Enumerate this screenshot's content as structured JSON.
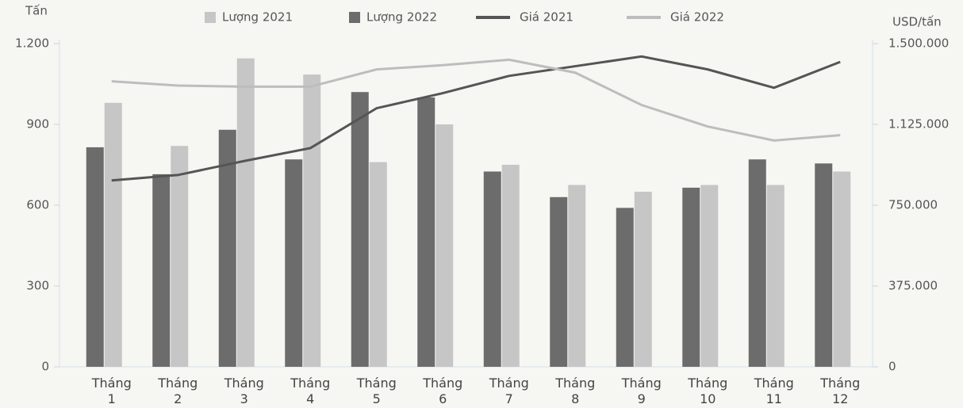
{
  "chart_data": {
    "type": "combo",
    "y_label": "Tấn",
    "y2_label": "USD/tấn",
    "categories": [
      "Tháng 1",
      "Tháng 2",
      "Tháng 3",
      "Tháng 4",
      "Tháng 5",
      "Tháng 6",
      "Tháng 7",
      "Tháng 8",
      "Tháng 9",
      "Tháng 10",
      "Tháng 11",
      "Tháng 12"
    ],
    "series": [
      {
        "name": "Lượng 2021",
        "type": "bar",
        "color": "#c6c6c6",
        "values": [
          980,
          820,
          1145,
          1085,
          760,
          900,
          750,
          675,
          650,
          675,
          675,
          725
        ]
      },
      {
        "name": "Lượng 2022",
        "type": "bar",
        "color": "#6c6c6c",
        "values": [
          815,
          715,
          880,
          770,
          1020,
          1000,
          725,
          630,
          590,
          665,
          770,
          755
        ]
      },
      {
        "name": "Giá 2021",
        "type": "line",
        "axis": "y2",
        "color": "#555555",
        "values": [
          865000,
          890000,
          955000,
          1015000,
          1200000,
          1270000,
          1350000,
          1395000,
          1440000,
          1380000,
          1295000,
          1415000
        ]
      },
      {
        "name": "Giá 2022",
        "type": "line",
        "axis": "y2",
        "color": "#bdbdbd",
        "values": [
          1325000,
          1305000,
          1300000,
          1300000,
          1380000,
          1400000,
          1425000,
          1365000,
          1215000,
          1115000,
          1050000,
          1075000
        ]
      }
    ],
    "ylim": [
      0,
      1200
    ],
    "yticks": [
      0,
      300,
      600,
      900,
      {
        "value": 1200,
        "label": "1.200"
      }
    ],
    "y2lim": [
      0,
      1500000
    ],
    "y2ticks": [
      0,
      {
        "value": 375000,
        "label": "375.000"
      },
      {
        "value": 750000,
        "label": "750.000"
      },
      {
        "value": 1125000,
        "label": "1.125.000"
      },
      {
        "value": 1500000,
        "label": "1.500.000"
      }
    ],
    "grid": false,
    "legend": "top"
  }
}
